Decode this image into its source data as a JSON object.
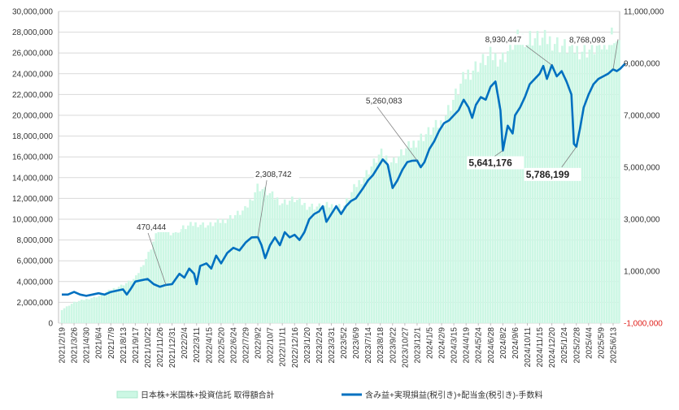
{
  "chart_data": {
    "type": "bar+line",
    "colors": {
      "bars": "#ccf7e4",
      "bar_border": "#b5eed4",
      "line": "#0070c0",
      "grid": "#d9d9d9",
      "negative_tick": "#e0201b"
    },
    "grid": true,
    "legend_position": "bottom",
    "left_axis": {
      "ylim": [
        0,
        30000000
      ],
      "ticks": [
        {
          "value": 0,
          "label": "0"
        },
        {
          "value": 2000000,
          "label": "2,000,000"
        },
        {
          "value": 4000000,
          "label": "4,000,000"
        },
        {
          "value": 6000000,
          "label": "6,000,000"
        },
        {
          "value": 8000000,
          "label": "8,000,000"
        },
        {
          "value": 10000000,
          "label": "10,000,000"
        },
        {
          "value": 12000000,
          "label": "12,000,000"
        },
        {
          "value": 14000000,
          "label": "14,000,000"
        },
        {
          "value": 16000000,
          "label": "16,000,000"
        },
        {
          "value": 18000000,
          "label": "18,000,000"
        },
        {
          "value": 20000000,
          "label": "20,000,000"
        },
        {
          "value": 22000000,
          "label": "22,000,000"
        },
        {
          "value": 24000000,
          "label": "24,000,000"
        },
        {
          "value": 26000000,
          "label": "26,000,000"
        },
        {
          "value": 28000000,
          "label": "28,000,000"
        },
        {
          "value": 30000000,
          "label": "30,000,000"
        }
      ]
    },
    "right_axis": {
      "ylim": [
        -1000000,
        11000000
      ],
      "ticks": [
        {
          "value": -1000000,
          "label": "-1,000,000",
          "negative": true
        },
        {
          "value": 1000000,
          "label": "1,000,000"
        },
        {
          "value": 3000000,
          "label": "3,000,000"
        },
        {
          "value": 5000000,
          "label": "5,000,000"
        },
        {
          "value": 7000000,
          "label": "7,000,000"
        },
        {
          "value": 9000000,
          "label": "9,000,000"
        },
        {
          "value": 11000000,
          "label": "11,000,000"
        }
      ]
    },
    "x_categories": [
      "2021/2/19",
      "2021/3/26",
      "2021/4/30",
      "2021/6/4",
      "2021/7/9",
      "2021/8/13",
      "2021/9/17",
      "2021/10/22",
      "2021/11/26",
      "2021/12/31",
      "2022/2/4",
      "2022/3/11",
      "2022/4/15",
      "2022/5/20",
      "2022/6/24",
      "2022/7/29",
      "2022/9/2",
      "2022/10/7",
      "2022/11/11",
      "2022/12/16",
      "2023/1/20",
      "2023/2/24",
      "2023/3/31",
      "2023/5/2",
      "2023/6/9",
      "2023/7/14",
      "2023/8/18",
      "2023/9/22",
      "2023/10/27",
      "2023/12/1",
      "2024/1/5",
      "2024/2/9",
      "2024/3/15",
      "2024/4/19",
      "2024/5/24",
      "2024/6/28",
      "2024/8/2",
      "2024/9/6",
      "2024/10/11",
      "2024/11/15",
      "2024/12/20",
      "2025/1/24",
      "2025/2/28",
      "2025/4/4",
      "2025/5/9",
      "2025/6/13"
    ],
    "bar_series": {
      "name": "日本株+米国株+投資信託 取得額合計",
      "axis": "left",
      "anchors": [
        [
          0,
          1300000
        ],
        [
          1,
          2000000
        ],
        [
          2,
          2300000
        ],
        [
          3,
          2600000
        ],
        [
          4,
          3200000
        ],
        [
          5,
          3700000
        ],
        [
          6,
          4300000
        ],
        [
          7,
          6500000
        ],
        [
          8,
          9300000
        ],
        [
          9,
          8700000
        ],
        [
          10,
          9200000
        ],
        [
          11,
          9600000
        ],
        [
          12,
          9400000
        ],
        [
          13,
          9800000
        ],
        [
          14,
          10300000
        ],
        [
          15,
          10900000
        ],
        [
          16,
          13200000
        ],
        [
          17,
          12400000
        ],
        [
          18,
          11600000
        ],
        [
          19,
          11900000
        ],
        [
          20,
          11300000
        ],
        [
          21,
          11200000
        ],
        [
          22,
          11300000
        ],
        [
          23,
          11200000
        ],
        [
          24,
          13200000
        ],
        [
          25,
          14600000
        ],
        [
          26,
          16300000
        ],
        [
          27,
          15500000
        ],
        [
          28,
          16600000
        ],
        [
          29,
          17600000
        ],
        [
          30,
          18400000
        ],
        [
          31,
          19300000
        ],
        [
          32,
          21600000
        ],
        [
          33,
          23900000
        ],
        [
          34,
          24900000
        ],
        [
          35,
          25700000
        ],
        [
          36,
          25500000
        ],
        [
          37,
          27200000
        ],
        [
          38,
          27600000
        ],
        [
          39,
          27300000
        ],
        [
          40,
          27200000
        ],
        [
          41,
          26600000
        ],
        [
          42,
          26300000
        ],
        [
          43,
          26300000
        ],
        [
          44,
          26600000
        ],
        [
          45,
          28000000
        ],
        [
          45.5,
          26500000
        ]
      ]
    },
    "line_series": {
      "name": "含み益+実現損益(税引き)+配当金(税引き)-手数料",
      "axis": "right",
      "anchors": [
        [
          0,
          100000
        ],
        [
          0.5,
          100000
        ],
        [
          1,
          200000
        ],
        [
          1.5,
          100000
        ],
        [
          2,
          50000
        ],
        [
          2.5,
          100000
        ],
        [
          3,
          150000
        ],
        [
          3.5,
          100000
        ],
        [
          4,
          200000
        ],
        [
          4.5,
          250000
        ],
        [
          5,
          300000
        ],
        [
          5.3,
          100000
        ],
        [
          5.6,
          300000
        ],
        [
          6,
          600000
        ],
        [
          6.5,
          650000
        ],
        [
          7,
          700000
        ],
        [
          7.5,
          500000
        ],
        [
          8,
          400000
        ],
        [
          8.5,
          470444
        ],
        [
          9,
          500000
        ],
        [
          9.3,
          700000
        ],
        [
          9.6,
          900000
        ],
        [
          10,
          750000
        ],
        [
          10.4,
          1100000
        ],
        [
          10.8,
          900000
        ],
        [
          11,
          500000
        ],
        [
          11.3,
          1200000
        ],
        [
          11.8,
          1300000
        ],
        [
          12.2,
          1100000
        ],
        [
          12.6,
          1600000
        ],
        [
          13,
          1300000
        ],
        [
          13.5,
          1700000
        ],
        [
          14,
          1900000
        ],
        [
          14.5,
          1800000
        ],
        [
          15,
          2100000
        ],
        [
          15.5,
          2300000
        ],
        [
          16,
          2308742
        ],
        [
          16.3,
          2000000
        ],
        [
          16.6,
          1500000
        ],
        [
          17,
          2000000
        ],
        [
          17.4,
          2300000
        ],
        [
          17.8,
          2000000
        ],
        [
          18.2,
          2500000
        ],
        [
          18.6,
          2300000
        ],
        [
          19,
          2400000
        ],
        [
          19.4,
          2200000
        ],
        [
          19.8,
          2500000
        ],
        [
          20.2,
          3000000
        ],
        [
          20.6,
          3200000
        ],
        [
          21,
          3300000
        ],
        [
          21.3,
          3500000
        ],
        [
          21.6,
          2900000
        ],
        [
          22,
          3200000
        ],
        [
          22.4,
          3500000
        ],
        [
          22.8,
          3200000
        ],
        [
          23.2,
          3500000
        ],
        [
          23.6,
          3700000
        ],
        [
          24,
          3800000
        ],
        [
          24.3,
          4000000
        ],
        [
          24.6,
          4200000
        ],
        [
          25,
          4500000
        ],
        [
          25.4,
          4700000
        ],
        [
          25.8,
          5000000
        ],
        [
          26.2,
          5300000
        ],
        [
          26.6,
          5100000
        ],
        [
          27,
          4200000
        ],
        [
          27.4,
          4500000
        ],
        [
          27.8,
          4900000
        ],
        [
          28.2,
          5200000
        ],
        [
          28.6,
          5250000
        ],
        [
          29,
          5260083
        ],
        [
          29.3,
          5000000
        ],
        [
          29.6,
          5200000
        ],
        [
          30,
          5700000
        ],
        [
          30.4,
          6000000
        ],
        [
          30.8,
          6400000
        ],
        [
          31.2,
          6700000
        ],
        [
          31.6,
          6800000
        ],
        [
          32,
          7000000
        ],
        [
          32.4,
          7200000
        ],
        [
          32.8,
          7600000
        ],
        [
          33.2,
          7300000
        ],
        [
          33.5,
          6900000
        ],
        [
          33.8,
          7400000
        ],
        [
          34.2,
          7700000
        ],
        [
          34.6,
          7600000
        ],
        [
          35,
          8100000
        ],
        [
          35.4,
          8300000
        ],
        [
          35.8,
          7200000
        ],
        [
          36,
          5641176
        ],
        [
          36.4,
          6600000
        ],
        [
          36.8,
          6300000
        ],
        [
          37,
          7000000
        ],
        [
          37.4,
          7300000
        ],
        [
          37.8,
          7700000
        ],
        [
          38.2,
          8200000
        ],
        [
          38.6,
          8400000
        ],
        [
          39,
          8600000
        ],
        [
          39.3,
          8900000
        ],
        [
          39.6,
          8400000
        ],
        [
          40,
          8930447
        ],
        [
          40.4,
          8500000
        ],
        [
          40.8,
          8700000
        ],
        [
          41.2,
          8300000
        ],
        [
          41.6,
          7800000
        ],
        [
          41.8,
          5900000
        ],
        [
          42,
          5786199
        ],
        [
          42.3,
          6500000
        ],
        [
          42.6,
          7300000
        ],
        [
          43,
          7800000
        ],
        [
          43.4,
          8200000
        ],
        [
          43.8,
          8400000
        ],
        [
          44.2,
          8500000
        ],
        [
          44.6,
          8600000
        ],
        [
          45,
          8768093
        ],
        [
          45.3,
          8700000
        ],
        [
          45.6,
          8800000
        ],
        [
          46,
          9000000
        ]
      ]
    },
    "annotations": [
      {
        "label": "470,444",
        "x": 8.5,
        "value": 470444,
        "bold": false
      },
      {
        "label": "2,308,742",
        "x": 16,
        "value": 2308742,
        "bold": false
      },
      {
        "label": "5,260,083",
        "x": 29,
        "value": 5260083,
        "bold": false
      },
      {
        "label": "8,930,447",
        "x": 40,
        "value": 8930447,
        "bold": false
      },
      {
        "label": "5,641,176",
        "x": 36,
        "value": 5641176,
        "bold": true
      },
      {
        "label": "5,786,199",
        "x": 42,
        "value": 5786199,
        "bold": true
      },
      {
        "label": "8,768,093",
        "x": 45,
        "value": 8768093,
        "bold": false
      }
    ]
  }
}
